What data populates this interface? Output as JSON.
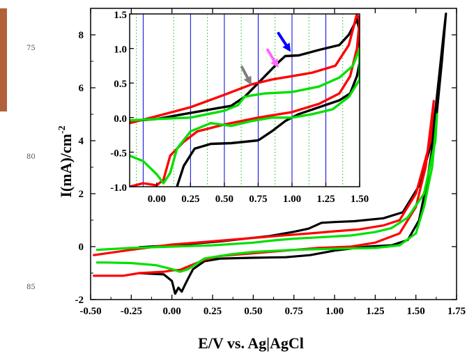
{
  "margin_line_numbers": [
    "75",
    "80",
    "85"
  ],
  "chart_data": [
    {
      "type": "line",
      "title": "",
      "xlabel": "E/V vs. Ag|AgCl",
      "ylabel": "I(mA)/cm-2",
      "ylabel_parts": {
        "main": "I(mA)/cm",
        "sup": "-2"
      },
      "xlim": [
        -0.5,
        1.75
      ],
      "ylim": [
        -2,
        9
      ],
      "x_ticks": [
        -0.5,
        -0.25,
        0.0,
        0.25,
        0.5,
        0.75,
        1.0,
        1.25,
        1.5,
        1.75
      ],
      "x_tick_labels": [
        "-0.50",
        "-0.25",
        "0.00",
        "0.25",
        "0.50",
        "0.75",
        "1.00",
        "1.25",
        "1.50",
        "1.75"
      ],
      "y_ticks": [
        -2,
        0,
        2,
        4,
        6,
        8
      ],
      "y_tick_labels": [
        "-2",
        "0",
        "2",
        "4",
        "6",
        "8"
      ],
      "grid": false,
      "legend": "none",
      "series": [
        {
          "color": "#000000",
          "points": [
            [
              -0.2,
              -1.0
            ],
            [
              -0.05,
              -1.05
            ],
            [
              0.0,
              -1.3
            ],
            [
              0.02,
              -1.78
            ],
            [
              0.04,
              -1.55
            ],
            [
              0.06,
              -1.7
            ],
            [
              0.08,
              -1.45
            ],
            [
              0.1,
              -1.2
            ],
            [
              0.13,
              -0.85
            ],
            [
              0.2,
              -0.55
            ],
            [
              0.3,
              -0.45
            ],
            [
              0.5,
              -0.42
            ],
            [
              0.7,
              -0.4
            ],
            [
              0.85,
              -0.32
            ],
            [
              1.0,
              -0.15
            ],
            [
              1.2,
              0.0
            ],
            [
              1.35,
              0.05
            ],
            [
              1.45,
              0.25
            ],
            [
              1.52,
              1.0
            ],
            [
              1.57,
              2.5
            ],
            [
              1.62,
              4.5
            ],
            [
              1.66,
              7.0
            ],
            [
              1.685,
              8.8
            ],
            [
              1.67,
              8.0
            ],
            [
              1.6,
              4.0
            ],
            [
              1.52,
              2.3
            ],
            [
              1.42,
              1.3
            ],
            [
              1.3,
              1.07
            ],
            [
              1.12,
              0.96
            ],
            [
              1.0,
              0.93
            ],
            [
              0.92,
              0.9
            ],
            [
              0.84,
              0.68
            ],
            [
              0.75,
              0.56
            ],
            [
              0.6,
              0.4
            ],
            [
              0.3,
              0.2
            ],
            [
              0.0,
              0.05
            ],
            [
              -0.2,
              -0.02
            ]
          ]
        },
        {
          "color": "#ff0000",
          "points": [
            [
              -0.48,
              -1.1
            ],
            [
              -0.4,
              -1.1
            ],
            [
              -0.3,
              -1.1
            ],
            [
              -0.2,
              -1.0
            ],
            [
              -0.05,
              -0.95
            ],
            [
              0.0,
              -0.9
            ],
            [
              0.05,
              -0.88
            ],
            [
              0.1,
              -0.75
            ],
            [
              0.2,
              -0.5
            ],
            [
              0.3,
              -0.35
            ],
            [
              0.5,
              -0.25
            ],
            [
              0.7,
              -0.15
            ],
            [
              0.9,
              -0.05
            ],
            [
              1.1,
              0.0
            ],
            [
              1.25,
              0.15
            ],
            [
              1.4,
              0.5
            ],
            [
              1.5,
              1.5
            ],
            [
              1.56,
              3.0
            ],
            [
              1.61,
              5.5
            ],
            [
              1.59,
              4.0
            ],
            [
              1.5,
              2.0
            ],
            [
              1.4,
              1.0
            ],
            [
              1.3,
              0.8
            ],
            [
              1.15,
              0.65
            ],
            [
              1.0,
              0.58
            ],
            [
              0.85,
              0.5
            ],
            [
              0.7,
              0.43
            ],
            [
              0.5,
              0.33
            ],
            [
              0.25,
              0.2
            ],
            [
              0.0,
              0.08
            ],
            [
              -0.25,
              -0.12
            ],
            [
              -0.48,
              -0.32
            ]
          ]
        },
        {
          "color": "#00e000",
          "points": [
            [
              -0.46,
              -0.6
            ],
            [
              -0.4,
              -0.6
            ],
            [
              -0.25,
              -0.62
            ],
            [
              -0.1,
              -0.7
            ],
            [
              0.0,
              -0.85
            ],
            [
              0.05,
              -0.95
            ],
            [
              0.1,
              -0.85
            ],
            [
              0.2,
              -0.45
            ],
            [
              0.35,
              -0.3
            ],
            [
              0.5,
              -0.2
            ],
            [
              0.75,
              -0.12
            ],
            [
              1.0,
              -0.08
            ],
            [
              1.25,
              -0.05
            ],
            [
              1.4,
              0.05
            ],
            [
              1.5,
              0.5
            ],
            [
              1.55,
              1.5
            ],
            [
              1.6,
              3.0
            ],
            [
              1.63,
              5.0
            ],
            [
              1.62,
              4.0
            ],
            [
              1.55,
              2.0
            ],
            [
              1.45,
              1.1
            ],
            [
              1.35,
              0.7
            ],
            [
              1.25,
              0.55
            ],
            [
              1.1,
              0.42
            ],
            [
              0.9,
              0.35
            ],
            [
              0.75,
              0.3
            ],
            [
              0.65,
              0.25
            ],
            [
              0.5,
              0.15
            ],
            [
              0.25,
              0.05
            ],
            [
              0.0,
              0.0
            ],
            [
              -0.25,
              -0.05
            ],
            [
              -0.46,
              -0.12
            ]
          ]
        }
      ]
    },
    {
      "type": "line",
      "title": "",
      "xlabel": "",
      "ylabel": "",
      "xlim": [
        -0.2,
        1.5
      ],
      "ylim": [
        -1.0,
        1.5
      ],
      "x_ticks": [
        0.0,
        0.25,
        0.5,
        0.75,
        1.0,
        1.25,
        1.5
      ],
      "x_tick_labels": [
        "0.00",
        "0.25",
        "0.50",
        "0.75",
        "1.00",
        "1.25",
        "1.50"
      ],
      "y_ticks": [
        -1.0,
        -0.5,
        0.0,
        0.5,
        1.0,
        1.5
      ],
      "y_tick_labels": [
        "-1.0",
        "-0.5",
        "0.0",
        "0.5",
        "1.0",
        "1.5"
      ],
      "grid": true,
      "grid_lines": {
        "solid_blue_x": [
          -0.1,
          0.25,
          0.5,
          0.75,
          1.0,
          1.25
        ],
        "dotted_green_x": [
          -0.15,
          0.125,
          0.375,
          0.625,
          0.875,
          1.125,
          1.375
        ]
      },
      "legend": "none",
      "series": [
        {
          "color": "#000000",
          "points": [
            [
              0.15,
              -1.0
            ],
            [
              0.2,
              -0.7
            ],
            [
              0.28,
              -0.45
            ],
            [
              0.4,
              -0.38
            ],
            [
              0.55,
              -0.37
            ],
            [
              0.75,
              -0.33
            ],
            [
              0.85,
              -0.2
            ],
            [
              0.95,
              -0.05
            ],
            [
              1.05,
              0.05
            ],
            [
              1.2,
              0.15
            ],
            [
              1.35,
              0.25
            ],
            [
              1.43,
              0.35
            ],
            [
              1.48,
              0.6
            ],
            [
              1.5,
              0.8
            ],
            [
              1.5,
              1.25
            ],
            [
              1.48,
              1.42
            ],
            [
              1.42,
              1.2
            ],
            [
              1.35,
              1.05
            ],
            [
              1.2,
              0.98
            ],
            [
              1.05,
              0.9
            ],
            [
              0.95,
              0.89
            ],
            [
              0.9,
              0.8
            ],
            [
              0.8,
              0.6
            ],
            [
              0.65,
              0.3
            ],
            [
              0.55,
              0.17
            ],
            [
              0.4,
              0.12
            ],
            [
              0.2,
              0.05
            ],
            [
              0.0,
              -0.02
            ],
            [
              -0.2,
              -0.05
            ]
          ]
        },
        {
          "color": "#ff0000",
          "points": [
            [
              -0.2,
              -1.0
            ],
            [
              -0.1,
              -0.95
            ],
            [
              0.0,
              -0.98
            ],
            [
              0.05,
              -0.9
            ],
            [
              0.1,
              -0.55
            ],
            [
              0.2,
              -0.35
            ],
            [
              0.3,
              -0.2
            ],
            [
              0.5,
              -0.1
            ],
            [
              0.75,
              0.0
            ],
            [
              1.0,
              0.08
            ],
            [
              1.2,
              0.2
            ],
            [
              1.35,
              0.35
            ],
            [
              1.43,
              0.6
            ],
            [
              1.48,
              1.0
            ],
            [
              1.5,
              1.4
            ],
            [
              1.48,
              1.5
            ],
            [
              1.42,
              1.05
            ],
            [
              1.32,
              0.75
            ],
            [
              1.15,
              0.65
            ],
            [
              1.0,
              0.6
            ],
            [
              0.85,
              0.55
            ],
            [
              0.7,
              0.48
            ],
            [
              0.5,
              0.33
            ],
            [
              0.25,
              0.15
            ],
            [
              0.0,
              0.02
            ],
            [
              -0.2,
              -0.08
            ]
          ]
        },
        {
          "color": "#00e000",
          "points": [
            [
              -0.2,
              -0.55
            ],
            [
              -0.1,
              -0.63
            ],
            [
              0.0,
              -0.82
            ],
            [
              0.05,
              -0.95
            ],
            [
              0.1,
              -0.8
            ],
            [
              0.15,
              -0.45
            ],
            [
              0.25,
              -0.2
            ],
            [
              0.4,
              -0.08
            ],
            [
              0.55,
              -0.12
            ],
            [
              0.7,
              -0.05
            ],
            [
              0.85,
              0.0
            ],
            [
              1.0,
              0.0
            ],
            [
              1.15,
              0.05
            ],
            [
              1.3,
              0.12
            ],
            [
              1.42,
              0.3
            ],
            [
              1.5,
              0.55
            ],
            [
              1.5,
              1.0
            ],
            [
              1.45,
              0.75
            ],
            [
              1.35,
              0.58
            ],
            [
              1.2,
              0.45
            ],
            [
              1.0,
              0.37
            ],
            [
              0.8,
              0.35
            ],
            [
              0.7,
              0.32
            ],
            [
              0.65,
              0.3
            ],
            [
              0.6,
              0.18
            ],
            [
              0.5,
              0.1
            ],
            [
              0.25,
              0.0
            ],
            [
              0.0,
              -0.02
            ],
            [
              -0.2,
              -0.04
            ]
          ]
        }
      ],
      "annotations": [
        {
          "type": "arrow",
          "color": "#0000ff",
          "tip": [
            0.99,
            0.95
          ],
          "from": [
            0.9,
            1.22
          ]
        },
        {
          "type": "arrow",
          "color": "#ff66ff",
          "tip": [
            0.9,
            0.72
          ],
          "from": [
            0.82,
            0.98
          ]
        },
        {
          "type": "arrow",
          "color": "#808080",
          "tip": [
            0.7,
            0.47
          ],
          "from": [
            0.63,
            0.73
          ]
        }
      ]
    }
  ]
}
